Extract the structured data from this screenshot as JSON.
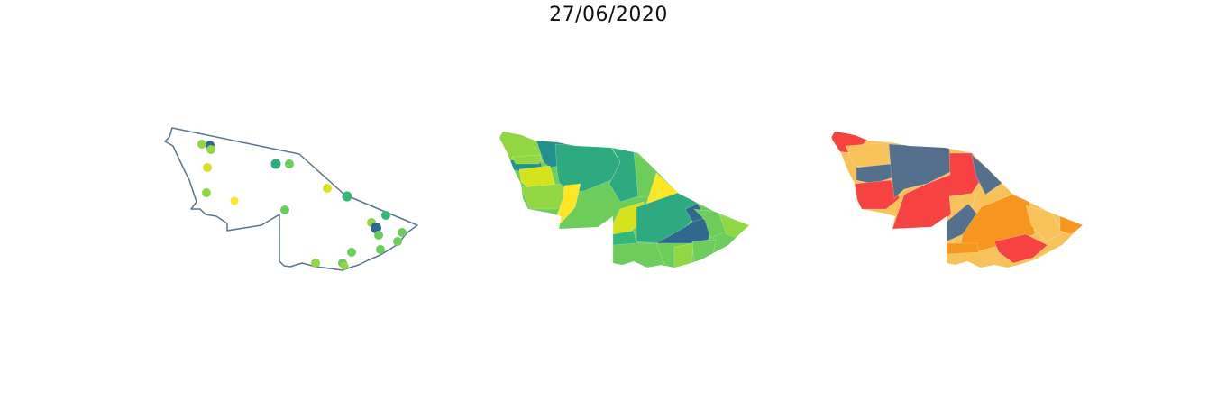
{
  "title": "27/06/2020",
  "colors": {
    "outline": "#5a7590",
    "viridis": [
      "#fde725",
      "#d7e21e",
      "#90d743",
      "#6ccd5a",
      "#35b779",
      "#2eaa80",
      "#21918c",
      "#31688e",
      "#3e5f8a"
    ],
    "risk": {
      "very_high": "#f74242",
      "high": "#f7961e",
      "medium": "#f8c25b",
      "low": "#55708d"
    }
  },
  "maps": [
    {
      "kind": "points",
      "points": [
        {
          "color": "#90d743"
        },
        {
          "color": "#31688e"
        },
        {
          "color": "#90d743"
        },
        {
          "color": "#d7e21e"
        },
        {
          "color": "#2eaa80"
        },
        {
          "color": "#6ccd5a"
        },
        {
          "color": "#90d743"
        },
        {
          "color": "#fde725"
        },
        {
          "color": "#d7e21e"
        },
        {
          "color": "#35b779"
        },
        {
          "color": "#6ccd5a"
        },
        {
          "color": "#35b779"
        },
        {
          "color": "#90d743"
        },
        {
          "color": "#31688e"
        },
        {
          "color": "#6ccd5a"
        },
        {
          "color": "#6ccd5a"
        },
        {
          "color": "#6ccd5a"
        },
        {
          "color": "#6ccd5a"
        },
        {
          "color": "#6ccd5a"
        },
        {
          "color": "#90d743"
        },
        {
          "color": "#6ccd5a"
        },
        {
          "color": "#90d743"
        }
      ]
    },
    {
      "kind": "choropleth-continuous"
    },
    {
      "kind": "choropleth-classes"
    }
  ]
}
